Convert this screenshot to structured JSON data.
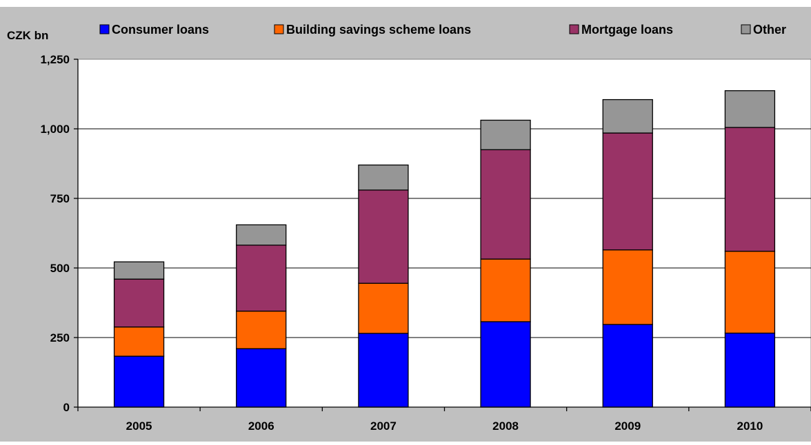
{
  "chart_data": {
    "type": "bar",
    "stacked": true,
    "ylabel": "CZK bn",
    "categories": [
      "2005",
      "2006",
      "2007",
      "2008",
      "2009",
      "2010"
    ],
    "ylim": [
      0,
      1250
    ],
    "yticks": [
      0,
      250,
      500,
      750,
      1000,
      1250
    ],
    "ytick_labels": [
      "0",
      "250",
      "500",
      "750",
      "1,000",
      "1,250"
    ],
    "grid": true,
    "legend_position": "top",
    "series": [
      {
        "name": "Consumer loans",
        "color": "#0000ff",
        "values": [
          183,
          210,
          265,
          307,
          297,
          266
        ]
      },
      {
        "name": "Building savings scheme loans",
        "color": "#ff6600",
        "values": [
          105,
          135,
          180,
          225,
          268,
          294
        ]
      },
      {
        "name": "Mortgage loans",
        "color": "#993366",
        "values": [
          172,
          237,
          335,
          393,
          420,
          445
        ]
      },
      {
        "name": "Other",
        "color": "#969696",
        "values": [
          62,
          73,
          90,
          106,
          120,
          132
        ]
      }
    ]
  }
}
